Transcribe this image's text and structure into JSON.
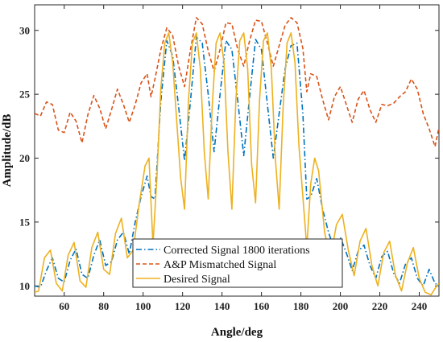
{
  "chart_data": {
    "type": "line",
    "title": "",
    "xlabel": "Angle/deg",
    "ylabel": "Amplitude/dB",
    "xlim": [
      45,
      250
    ],
    "ylim": [
      9.2,
      32
    ],
    "grid": false,
    "legend_position": "bottom-center",
    "x_ticks": [
      60,
      80,
      100,
      120,
      140,
      160,
      180,
      200,
      220,
      240
    ],
    "y_ticks": [
      10,
      15,
      20,
      25,
      30
    ],
    "series": [
      {
        "name": "Corrected Signal 1800 iterations",
        "color": "#0072BD",
        "style": "dashdot",
        "x": [
          45,
          48,
          51,
          54,
          57,
          60,
          63,
          66,
          69,
          72,
          75,
          78,
          81,
          84,
          87,
          90,
          93,
          96,
          99,
          102,
          104,
          106,
          109,
          112,
          115,
          118,
          121,
          124,
          127,
          130,
          133,
          136,
          139,
          142,
          145,
          148,
          151,
          154,
          157,
          160,
          163,
          166,
          169,
          172,
          175,
          178,
          181,
          183,
          185,
          188,
          191,
          194,
          197,
          200,
          203,
          206,
          209,
          212,
          215,
          218,
          221,
          224,
          227,
          230,
          233,
          236,
          239,
          242,
          245,
          248,
          250
        ],
        "y": [
          10.0,
          9.9,
          11.2,
          12.2,
          10.6,
          10.3,
          12.0,
          12.9,
          10.9,
          10.6,
          12.4,
          13.6,
          11.6,
          11.9,
          13.6,
          14.2,
          12.5,
          15.0,
          17.0,
          18.6,
          17.0,
          16.8,
          24.5,
          29.2,
          28.0,
          24.0,
          19.8,
          24.5,
          29.5,
          29.0,
          25.0,
          20.5,
          25.0,
          29.2,
          28.5,
          24.5,
          20.2,
          24.8,
          29.3,
          28.5,
          24.2,
          20.0,
          23.5,
          27.0,
          28.8,
          29.0,
          23.5,
          16.8,
          17.0,
          18.4,
          16.0,
          14.2,
          12.8,
          13.8,
          12.6,
          11.2,
          12.7,
          13.2,
          11.6,
          10.6,
          12.3,
          12.7,
          11.0,
          10.2,
          11.7,
          12.2,
          10.6,
          10.0,
          11.3,
          10.2,
          10.0
        ]
      },
      {
        "name": "A&P Mismatched Signal",
        "color": "#D95319",
        "style": "dashed",
        "x": [
          45,
          48,
          51,
          54,
          57,
          60,
          63,
          66,
          69,
          72,
          75,
          78,
          81,
          84,
          87,
          90,
          93,
          96,
          99,
          102,
          104,
          106,
          109,
          112,
          115,
          118,
          121,
          124,
          127,
          130,
          133,
          136,
          139,
          142,
          145,
          148,
          151,
          154,
          157,
          160,
          163,
          166,
          169,
          172,
          175,
          178,
          181,
          183,
          185,
          188,
          191,
          194,
          197,
          200,
          203,
          206,
          209,
          212,
          215,
          218,
          221,
          224,
          227,
          230,
          233,
          236,
          239,
          242,
          245,
          248,
          250
        ],
        "y": [
          23.5,
          23.3,
          24.4,
          24.2,
          22.2,
          22.0,
          23.6,
          22.9,
          21.2,
          23.4,
          24.9,
          23.9,
          22.3,
          23.8,
          25.4,
          24.2,
          22.8,
          24.2,
          25.9,
          26.6,
          24.8,
          26.2,
          28.5,
          30.2,
          29.6,
          27.2,
          25.6,
          28.5,
          31.0,
          30.5,
          28.4,
          26.8,
          28.5,
          30.6,
          30.5,
          28.5,
          27.2,
          29.2,
          30.8,
          30.7,
          29.0,
          27.2,
          28.8,
          30.4,
          31.0,
          30.6,
          28.6,
          25.2,
          26.6,
          26.4,
          24.6,
          23.0,
          24.8,
          25.6,
          24.2,
          22.8,
          24.6,
          25.3,
          23.8,
          22.8,
          24.2,
          24.1,
          24.3,
          24.8,
          25.2,
          26.2,
          25.4,
          23.5,
          22.3,
          20.9,
          22.4
        ]
      },
      {
        "name": "Desired Signal",
        "color": "#EDB120",
        "style": "solid",
        "x": [
          45,
          47,
          50,
          53,
          56,
          59,
          62,
          65,
          68,
          71,
          74,
          77,
          80,
          83,
          86,
          89,
          92,
          95,
          98,
          101,
          103,
          105,
          107,
          109,
          111,
          113,
          115,
          117,
          119,
          121,
          123,
          125,
          127,
          129,
          131,
          133,
          135,
          137,
          139,
          141,
          143,
          145,
          147,
          149,
          151,
          153,
          155,
          157,
          159,
          161,
          163,
          165,
          167,
          169,
          171,
          173,
          175,
          177,
          179,
          181,
          183,
          185,
          187,
          189,
          192,
          195,
          198,
          201,
          204,
          207,
          210,
          213,
          216,
          219,
          222,
          225,
          228,
          231,
          234,
          237,
          240,
          243,
          246,
          248,
          250
        ],
        "y": [
          9.5,
          9.6,
          12.2,
          12.8,
          10.2,
          9.6,
          12.4,
          13.4,
          10.4,
          9.9,
          13.0,
          14.2,
          11.3,
          10.9,
          14.1,
          15.3,
          12.2,
          12.8,
          16.4,
          19.4,
          20.0,
          13.2,
          18.5,
          25.5,
          29.0,
          29.8,
          27.5,
          23.0,
          18.5,
          16.0,
          24.5,
          29.0,
          29.8,
          27.0,
          20.5,
          16.8,
          24.0,
          29.0,
          29.8,
          27.5,
          20.5,
          16.0,
          24.5,
          29.2,
          29.8,
          27.0,
          19.5,
          16.5,
          24.5,
          29.2,
          29.8,
          27.0,
          20.0,
          16.0,
          24.0,
          29.0,
          29.8,
          27.5,
          21.0,
          17.0,
          13.0,
          18.0,
          20.0,
          19.0,
          14.2,
          12.2,
          14.8,
          15.6,
          12.8,
          10.8,
          13.5,
          14.5,
          11.6,
          10.0,
          12.6,
          13.5,
          10.8,
          9.6,
          11.8,
          13.0,
          10.6,
          9.5,
          9.3,
          9.8,
          10.2
        ]
      }
    ]
  }
}
